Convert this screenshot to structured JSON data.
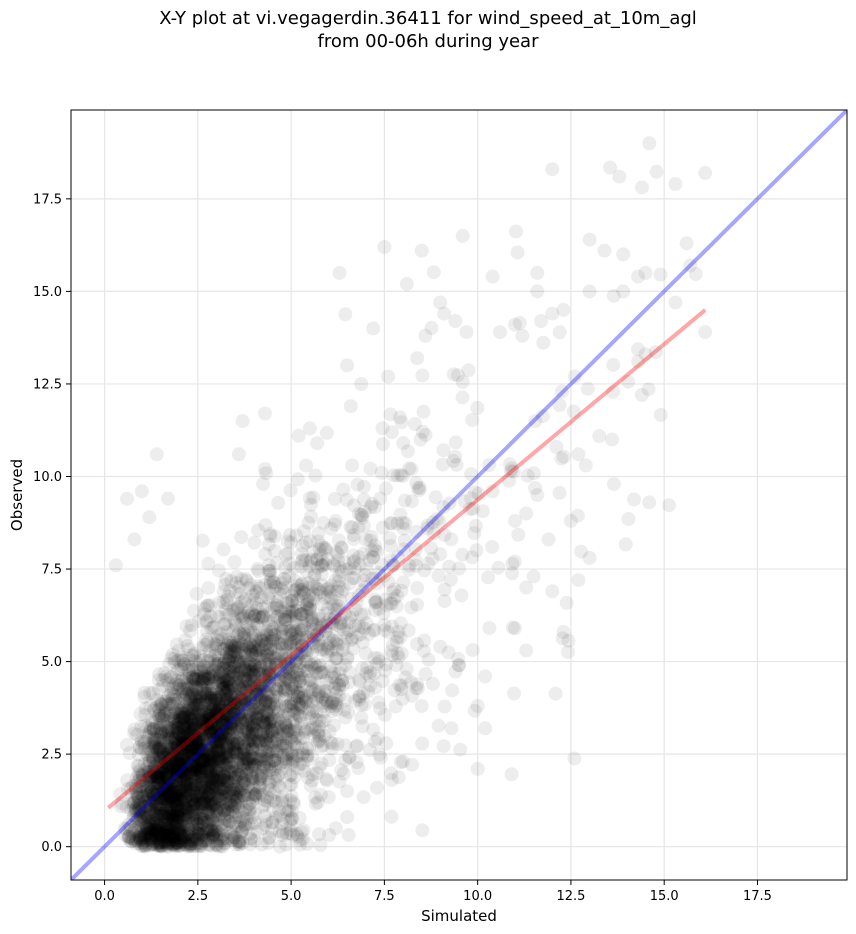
{
  "title": {
    "line1": "X-Y plot at vi.vegagerdin.36411 for wind_speed_at_10m_agl",
    "line2": "from 00-06h during year"
  },
  "colors": {
    "points": "#000000",
    "identity_line": "#0000ff",
    "regression_line": "#ff0000",
    "grid": "#e6e6e6"
  },
  "chart_data": {
    "type": "scatter",
    "title": "X-Y plot at vi.vegagerdin.36411 for wind_speed_at_10m_agl from 00-06h during year",
    "xlabel": "Simulated",
    "ylabel": "Observed",
    "xlim": [
      -0.9,
      19.9
    ],
    "ylim": [
      -0.9,
      19.9
    ],
    "grid": true,
    "xticks": [
      "0.0",
      "2.5",
      "5.0",
      "7.5",
      "10.0",
      "12.5",
      "15.0",
      "17.5"
    ],
    "yticks": [
      "0.0",
      "2.5",
      "5.0",
      "7.5",
      "10.0",
      "12.5",
      "15.0",
      "17.5"
    ],
    "tick_values": [
      0,
      2.5,
      5,
      7.5,
      10,
      12.5,
      15,
      17.5
    ],
    "identity_line": {
      "x": [
        -0.9,
        19.9
      ],
      "y": [
        -0.9,
        19.9
      ]
    },
    "regression_line": {
      "x": [
        0.1,
        16.1
      ],
      "y": [
        1.05,
        14.5
      ]
    },
    "point_cloud": {
      "approx_count": 5000,
      "x_range": [
        0.1,
        16.1
      ],
      "y_range": [
        0.0,
        19.0
      ],
      "slope": 0.84,
      "intercept": 1.0
    },
    "outliers": [
      {
        "x": 12.0,
        "y": 18.3
      },
      {
        "x": 14.6,
        "y": 19.0
      },
      {
        "x": 13.8,
        "y": 18.1
      },
      {
        "x": 16.1,
        "y": 18.2
      },
      {
        "x": 15.3,
        "y": 17.9
      },
      {
        "x": 9.6,
        "y": 16.5
      },
      {
        "x": 7.5,
        "y": 16.2
      },
      {
        "x": 8.5,
        "y": 16.1
      },
      {
        "x": 6.3,
        "y": 15.5
      },
      {
        "x": 13.0,
        "y": 16.4
      },
      {
        "x": 13.4,
        "y": 16.1
      },
      {
        "x": 13.9,
        "y": 16.0
      },
      {
        "x": 15.6,
        "y": 16.3
      },
      {
        "x": 15.7,
        "y": 15.7
      },
      {
        "x": 14.5,
        "y": 15.5
      },
      {
        "x": 14.3,
        "y": 15.4
      },
      {
        "x": 11.6,
        "y": 15.5
      },
      {
        "x": 10.4,
        "y": 15.4
      },
      {
        "x": 8.1,
        "y": 15.2
      },
      {
        "x": 11.6,
        "y": 15.0
      },
      {
        "x": 13.0,
        "y": 15.0
      },
      {
        "x": 13.9,
        "y": 15.0
      },
      {
        "x": 15.3,
        "y": 14.7
      },
      {
        "x": 16.1,
        "y": 13.9
      },
      {
        "x": 14.5,
        "y": 13.3
      },
      {
        "x": 14.3,
        "y": 13.1
      },
      {
        "x": 14.4,
        "y": 12.2
      },
      {
        "x": 12.3,
        "y": 14.5
      },
      {
        "x": 12.6,
        "y": 12.7
      },
      {
        "x": 13.6,
        "y": 11.0
      },
      {
        "x": 14.6,
        "y": 9.3
      },
      {
        "x": 12.7,
        "y": 10.6
      },
      {
        "x": 12.9,
        "y": 10.3
      },
      {
        "x": 12.5,
        "y": 8.8
      },
      {
        "x": 13.0,
        "y": 7.8
      },
      {
        "x": 12.7,
        "y": 7.2
      },
      {
        "x": 11.9,
        "y": 8.3
      },
      {
        "x": 12.3,
        "y": 5.8
      },
      {
        "x": 11.5,
        "y": 7.3
      },
      {
        "x": 11.3,
        "y": 7.0
      },
      {
        "x": 12.0,
        "y": 6.9
      },
      {
        "x": 11.6,
        "y": 9.5
      },
      {
        "x": 10.4,
        "y": 9.6
      },
      {
        "x": 11.3,
        "y": 9.0
      },
      {
        "x": 11.0,
        "y": 8.8
      },
      {
        "x": 10.0,
        "y": 2.1
      },
      {
        "x": 10.2,
        "y": 3.2
      },
      {
        "x": 9.3,
        "y": 3.2
      },
      {
        "x": 10.0,
        "y": 3.8
      },
      {
        "x": 10.2,
        "y": 4.6
      },
      {
        "x": 11.0,
        "y": 5.9
      },
      {
        "x": 11.3,
        "y": 5.3
      },
      {
        "x": 9.5,
        "y": 4.9
      },
      {
        "x": 9.0,
        "y": 5.4
      },
      {
        "x": 8.5,
        "y": 3.8
      },
      {
        "x": 8.8,
        "y": 4.4
      },
      {
        "x": 7.7,
        "y": 1.8
      },
      {
        "x": 8.0,
        "y": 2.3
      },
      {
        "x": 7.4,
        "y": 2.4
      },
      {
        "x": 6.5,
        "y": 1.5
      },
      {
        "x": 6.5,
        "y": 0.8
      },
      {
        "x": 6.2,
        "y": 0.5
      },
      {
        "x": 4.7,
        "y": 0.0
      },
      {
        "x": 0.6,
        "y": 9.4
      },
      {
        "x": 1.0,
        "y": 9.6
      },
      {
        "x": 1.4,
        "y": 10.6
      },
      {
        "x": 0.3,
        "y": 7.6
      },
      {
        "x": 0.8,
        "y": 8.3
      },
      {
        "x": 1.2,
        "y": 8.9
      },
      {
        "x": 1.7,
        "y": 9.4
      },
      {
        "x": 3.6,
        "y": 10.6
      },
      {
        "x": 3.7,
        "y": 11.5
      },
      {
        "x": 4.3,
        "y": 11.7
      },
      {
        "x": 4.3,
        "y": 10.2
      },
      {
        "x": 5.2,
        "y": 11.1
      },
      {
        "x": 5.5,
        "y": 11.3
      },
      {
        "x": 5.7,
        "y": 10.9
      },
      {
        "x": 6.5,
        "y": 13.0
      },
      {
        "x": 7.2,
        "y": 14.0
      },
      {
        "x": 6.6,
        "y": 11.9
      },
      {
        "x": 7.6,
        "y": 12.7
      },
      {
        "x": 9.0,
        "y": 14.7
      },
      {
        "x": 8.6,
        "y": 13.8
      },
      {
        "x": 9.1,
        "y": 14.4
      },
      {
        "x": 9.4,
        "y": 14.2
      },
      {
        "x": 9.7,
        "y": 13.9
      },
      {
        "x": 10.6,
        "y": 13.9
      },
      {
        "x": 11.0,
        "y": 14.1
      },
      {
        "x": 11.2,
        "y": 13.8
      },
      {
        "x": 11.7,
        "y": 14.2
      },
      {
        "x": 12.0,
        "y": 14.4
      }
    ]
  }
}
